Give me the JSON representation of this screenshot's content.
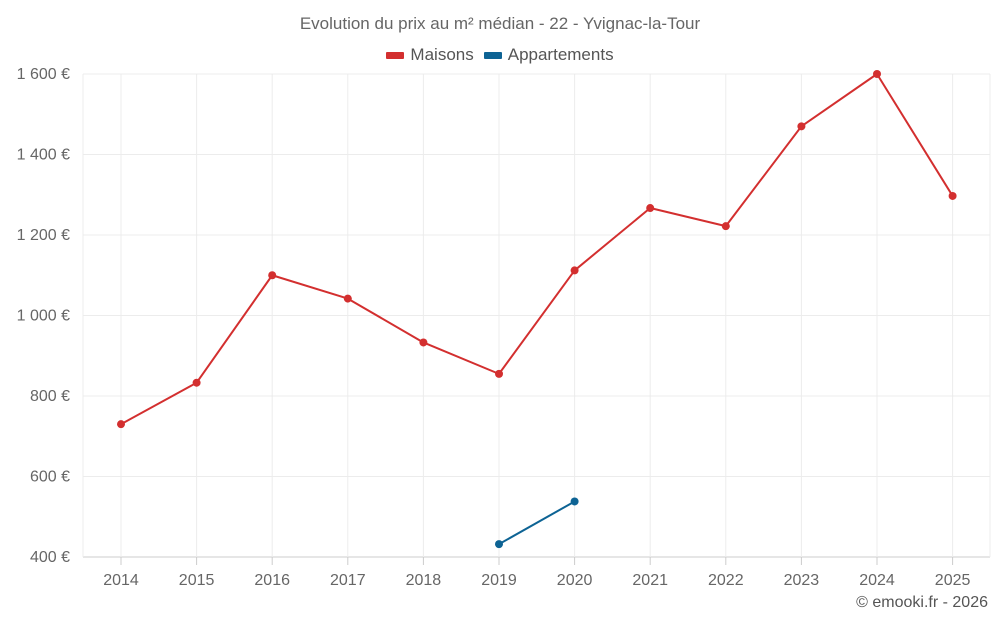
{
  "chart_data": {
    "type": "line",
    "title": "Evolution du prix au m² médian - 22 - Yvignac-la-Tour",
    "x": [
      "2014",
      "2015",
      "2016",
      "2017",
      "2018",
      "2019",
      "2020",
      "2021",
      "2022",
      "2023",
      "2024",
      "2025"
    ],
    "yticks": [
      "400 €",
      "600 €",
      "800 €",
      "1 000 €",
      "1 200 €",
      "1 400 €",
      "1 600 €"
    ],
    "ylim": [
      400,
      1600
    ],
    "grid": true,
    "legend_position": "top",
    "series": [
      {
        "name": "Maisons",
        "color": "#d32f2f",
        "values": [
          730,
          833,
          1100,
          1042,
          933,
          855,
          1112,
          1267,
          1222,
          1470,
          1600,
          1297
        ]
      },
      {
        "name": "Appartements",
        "color": "#0d6394",
        "values": [
          null,
          null,
          null,
          null,
          null,
          432,
          538,
          null,
          null,
          null,
          null,
          null
        ]
      }
    ],
    "credit": "© emooki.fr - 2026"
  }
}
